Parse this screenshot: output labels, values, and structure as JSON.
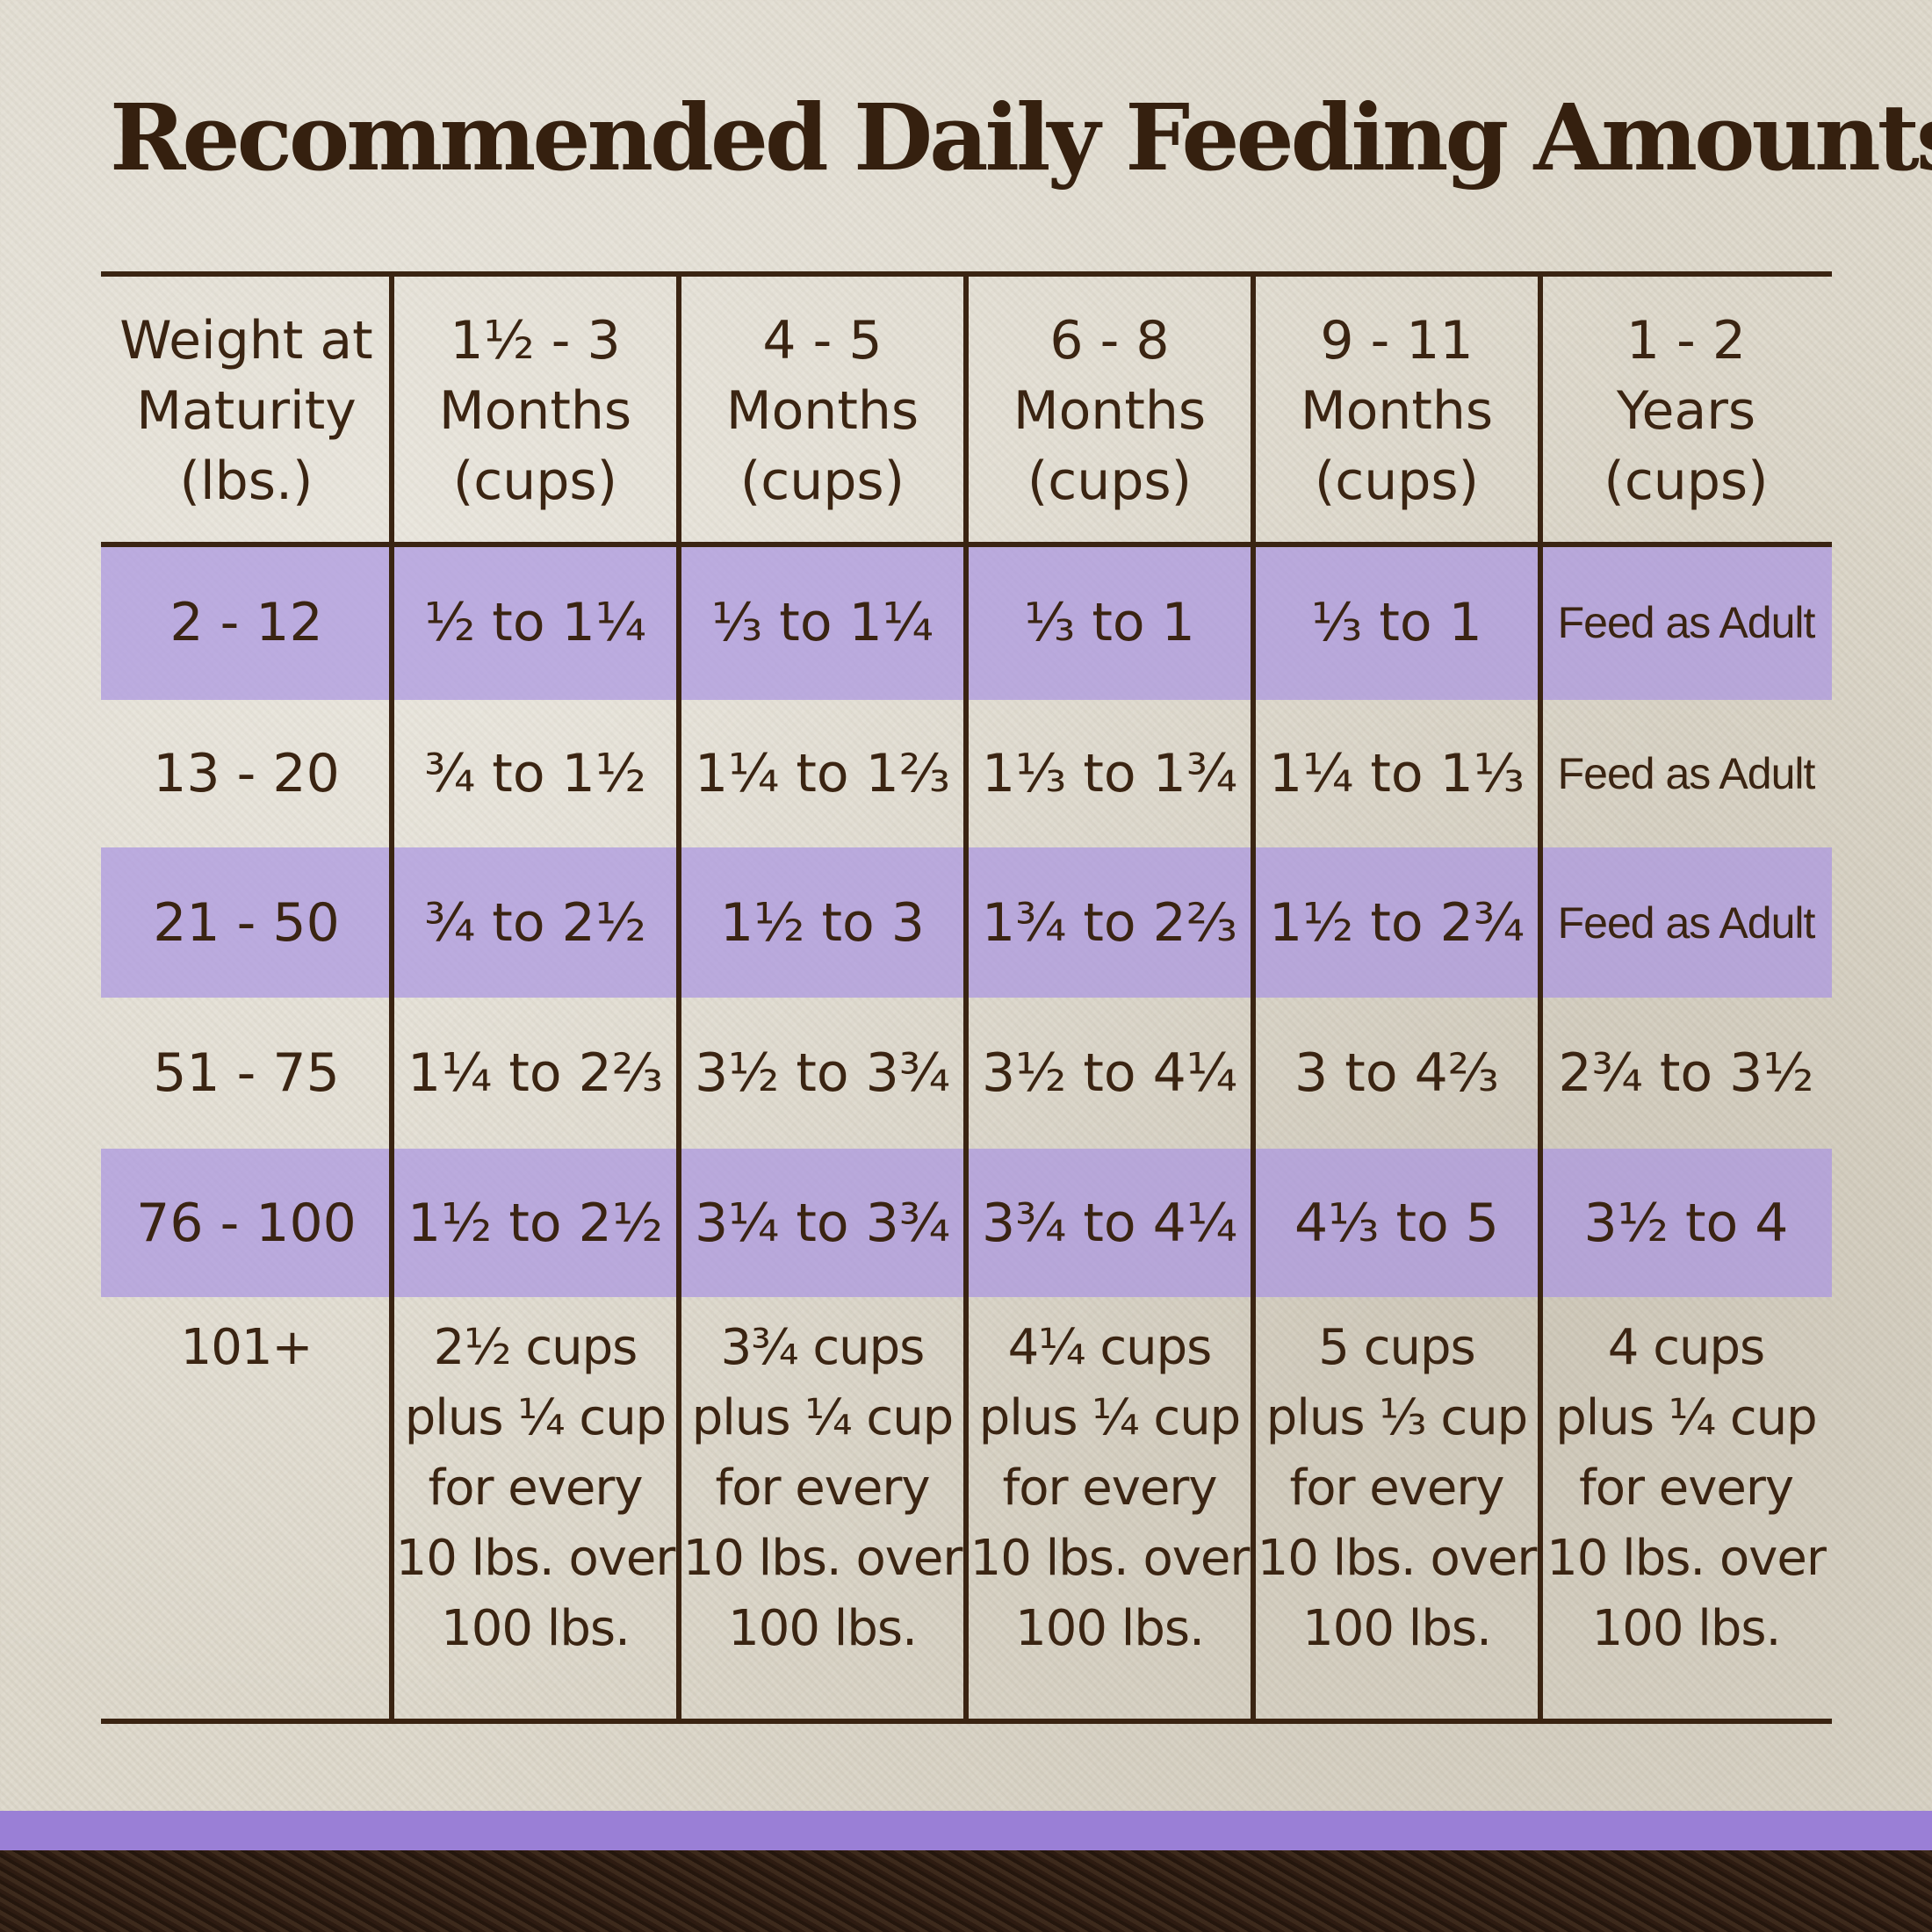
{
  "title": "Recommended Daily Feeding Amounts:",
  "colors": {
    "text": "#3a2412",
    "band": "#aa96e1",
    "accent_bar": "#9a7fd6"
  },
  "headers": [
    "Weight at\nMaturity\n(lbs.)",
    "1½ - 3\nMonths\n(cups)",
    "4 - 5\nMonths\n(cups)",
    "6 - 8\nMonths\n(cups)",
    "9 - 11\nMonths\n(cups)",
    "1 - 2\nYears\n(cups)"
  ],
  "rows": [
    [
      "2 - 12",
      "½ to 1¼",
      "⅓ to 1¼",
      "⅓ to 1",
      "⅓ to 1",
      "Feed as Adult"
    ],
    [
      "13 - 20",
      "¾ to 1½",
      "1¼ to 1⅔",
      "1⅓ to 1¾",
      "1¼ to 1⅓",
      "Feed as Adult"
    ],
    [
      "21 - 50",
      "¾ to 2½",
      "1½ to 3",
      "1¾ to 2⅔",
      "1½ to 2¾",
      "Feed as Adult"
    ],
    [
      "51 - 75",
      "1¼ to 2⅔",
      "3½ to 3¾",
      "3½ to 4¼",
      "3 to 4⅔",
      "2¾ to 3½"
    ],
    [
      "76 - 100",
      "1½ to 2½",
      "3¼ to 3¾",
      "3¾ to 4¼",
      "4⅓ to 5",
      "3½ to 4"
    ],
    [
      "101+",
      "2½ cups\nplus ¼ cup\nfor every\n10 lbs. over\n100 lbs.",
      "3¾ cups\nplus ¼ cup\nfor every\n10 lbs. over\n100 lbs.",
      "4¼ cups\nplus ¼ cup\nfor every\n10 lbs. over\n100 lbs.",
      "5 cups\nplus ⅓ cup\nfor every\n10 lbs. over\n100 lbs.",
      "4 cups\nplus ¼ cup\nfor every\n10 lbs. over\n100 lbs."
    ]
  ]
}
